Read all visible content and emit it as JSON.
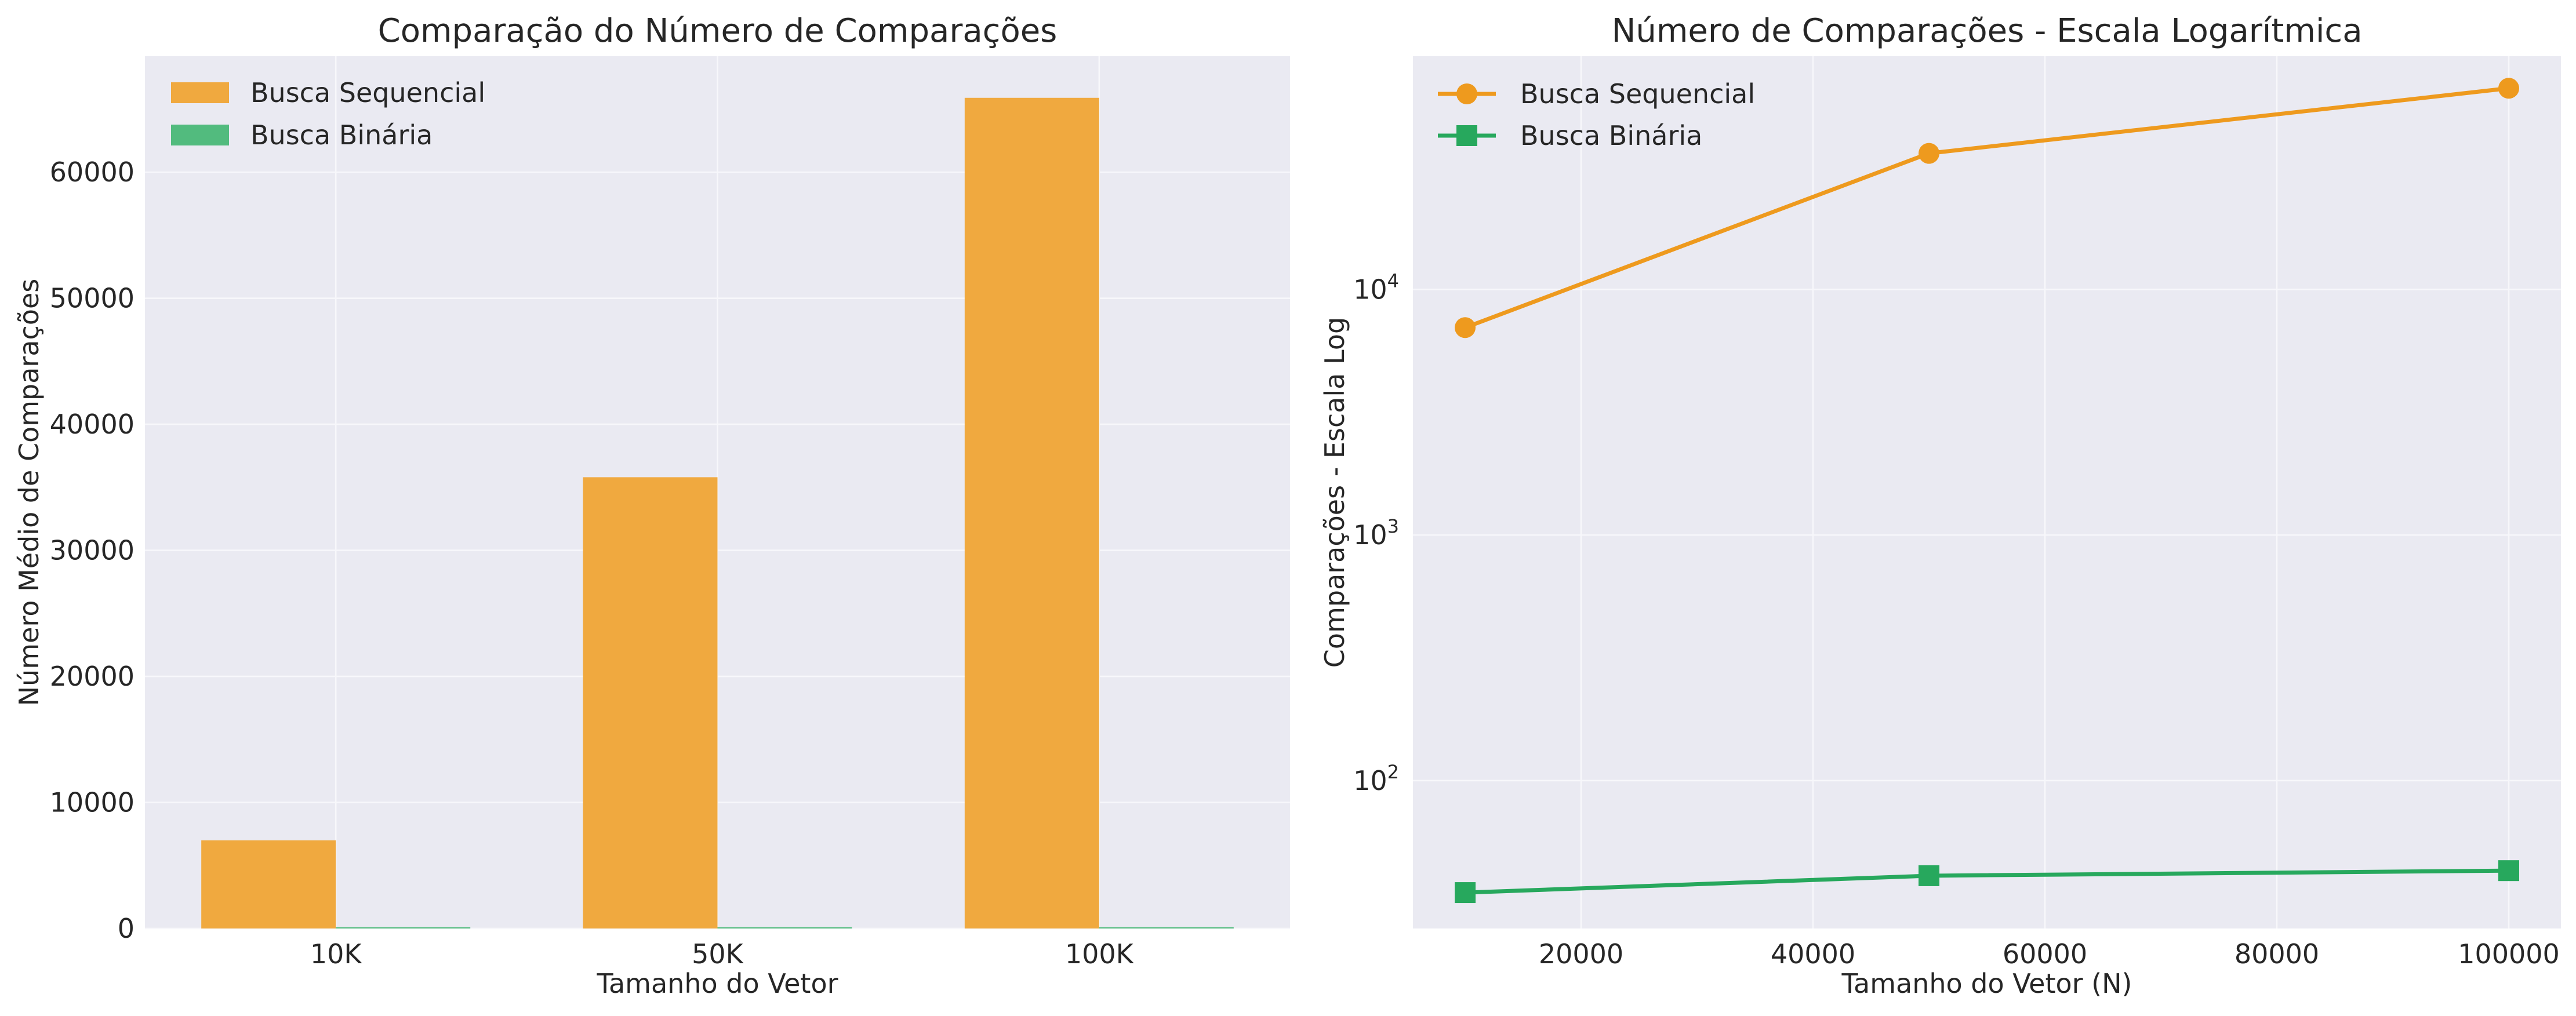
{
  "chart_data": [
    {
      "type": "bar",
      "title": "Comparação do Número de Comparações",
      "xlabel": "Tamanho do Vetor",
      "ylabel": "Número Médio de Comparações",
      "categories": [
        "10K",
        "50K",
        "100K"
      ],
      "series": [
        {
          "name": "Busca Sequencial",
          "color": "#f0a93f",
          "values": [
            6990,
            35800,
            65900
          ]
        },
        {
          "name": "Busca Binária",
          "color": "#52bb7e",
          "values": [
            35,
            41,
            43
          ]
        }
      ],
      "ylim": [
        0,
        69200
      ],
      "yticks": [
        0,
        10000,
        20000,
        30000,
        40000,
        50000,
        60000
      ],
      "ytick_labels": [
        "0",
        "10000",
        "20000",
        "30000",
        "40000",
        "50000",
        "60000"
      ],
      "grid": true,
      "legend": "top-left"
    },
    {
      "type": "line",
      "title": "Número de Comparações - Escala Logarítmica",
      "xlabel": "Tamanho do Vetor (N)",
      "ylabel": "Comparações - Escala Log",
      "yscale": "log",
      "x": [
        10000,
        50000,
        100000
      ],
      "series": [
        {
          "name": "Busca Sequencial",
          "color": "#ee9a1e",
          "marker": "circle",
          "values": [
            6990,
            35800,
            65900
          ]
        },
        {
          "name": "Busca Binária",
          "color": "#27a85d",
          "marker": "square",
          "values": [
            35,
            41,
            43
          ]
        }
      ],
      "xlim": [
        5500,
        104500
      ],
      "ylim": [
        25,
        89000
      ],
      "xticks": [
        20000,
        40000,
        60000,
        80000,
        100000
      ],
      "xtick_labels": [
        "20000",
        "40000",
        "60000",
        "80000",
        "100000"
      ],
      "yticks": [
        100,
        1000,
        10000
      ],
      "ytick_labels": [
        {
          "base": "10",
          "exp": "2"
        },
        {
          "base": "10",
          "exp": "3"
        },
        {
          "base": "10",
          "exp": "4"
        }
      ],
      "grid": true,
      "legend": "top-left"
    }
  ]
}
